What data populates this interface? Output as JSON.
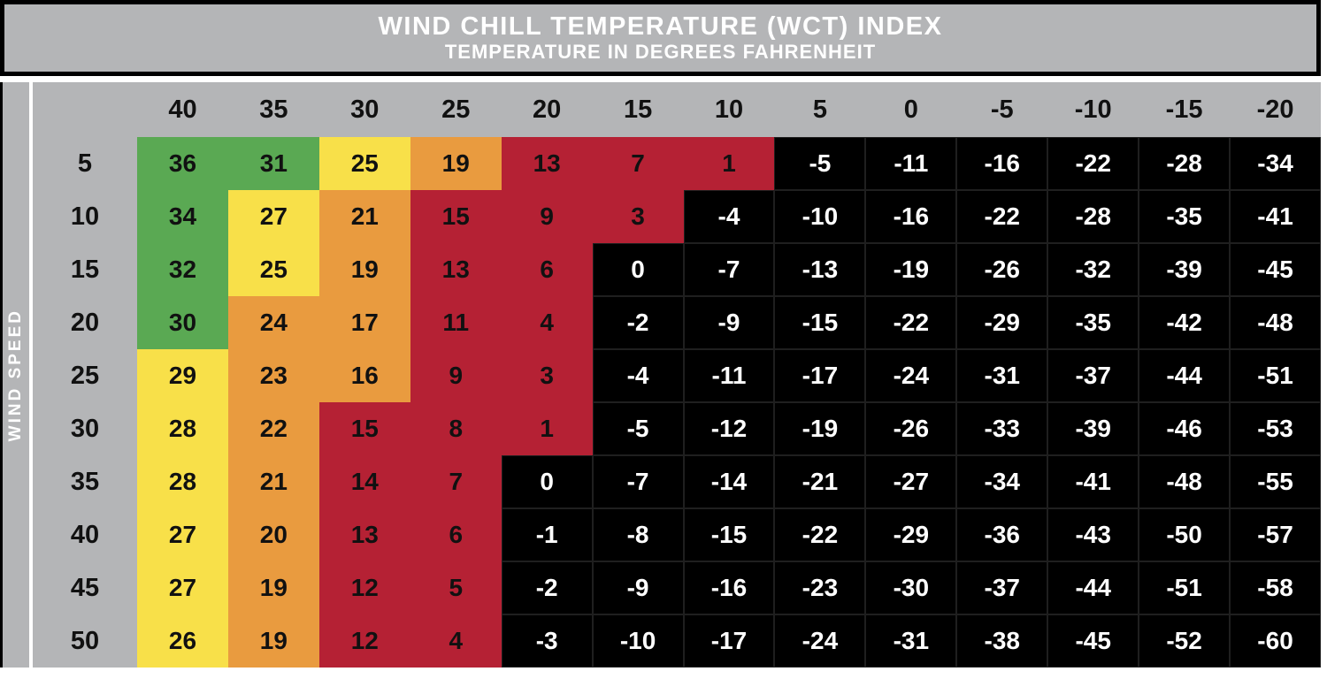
{
  "title_bar": {
    "title": "WIND CHILL TEMPERATURE (WCT) INDEX",
    "subtitle": "TEMPERATURE IN DEGREES FAHRENHEIT"
  },
  "sidebar": {
    "label": "WIND SPEED"
  },
  "chart_data": {
    "type": "heatmap",
    "columns": [
      40,
      35,
      30,
      25,
      20,
      15,
      10,
      5,
      0,
      -5,
      -10,
      -15,
      -20
    ],
    "rows": [
      {
        "wind_speed": 5,
        "values": [
          36,
          31,
          25,
          19,
          13,
          7,
          1,
          -5,
          -11,
          -16,
          -22,
          -28,
          -34
        ]
      },
      {
        "wind_speed": 10,
        "values": [
          34,
          27,
          21,
          15,
          9,
          3,
          -4,
          -10,
          -16,
          -22,
          -28,
          -35,
          -41
        ]
      },
      {
        "wind_speed": 15,
        "values": [
          32,
          25,
          19,
          13,
          6,
          0,
          -7,
          -13,
          -19,
          -26,
          -32,
          -39,
          -45
        ]
      },
      {
        "wind_speed": 20,
        "values": [
          30,
          24,
          17,
          11,
          4,
          -2,
          -9,
          -15,
          -22,
          -29,
          -35,
          -42,
          -48
        ]
      },
      {
        "wind_speed": 25,
        "values": [
          29,
          23,
          16,
          9,
          3,
          -4,
          -11,
          -17,
          -24,
          -31,
          -37,
          -44,
          -51
        ]
      },
      {
        "wind_speed": 30,
        "values": [
          28,
          22,
          15,
          8,
          1,
          -5,
          -12,
          -19,
          -26,
          -33,
          -39,
          -46,
          -53
        ]
      },
      {
        "wind_speed": 35,
        "values": [
          28,
          21,
          14,
          7,
          0,
          -7,
          -14,
          -21,
          -27,
          -34,
          -41,
          -48,
          -55
        ]
      },
      {
        "wind_speed": 40,
        "values": [
          27,
          20,
          13,
          6,
          -1,
          -8,
          -15,
          -22,
          -29,
          -36,
          -43,
          -50,
          -57
        ]
      },
      {
        "wind_speed": 45,
        "values": [
          27,
          19,
          12,
          5,
          -2,
          -9,
          -16,
          -23,
          -30,
          -37,
          -44,
          -51,
          -58
        ]
      },
      {
        "wind_speed": 50,
        "values": [
          26,
          19,
          12,
          4,
          -3,
          -10,
          -17,
          -24,
          -31,
          -38,
          -45,
          -52,
          -60
        ]
      }
    ],
    "color_zones": [
      {
        "name": "green",
        "min": 30,
        "hex": "#5aa953"
      },
      {
        "name": "yellow",
        "min": 25,
        "hex": "#f8e049"
      },
      {
        "name": "orange",
        "min": 16,
        "hex": "#e99b3f"
      },
      {
        "name": "red",
        "min": 1,
        "hex": "#b52134"
      },
      {
        "name": "black",
        "min": -999,
        "hex": "#000000"
      }
    ],
    "header_bg": "#b4b5b7",
    "text_on_dark": "#ffffff",
    "text_on_light": "#111111"
  }
}
